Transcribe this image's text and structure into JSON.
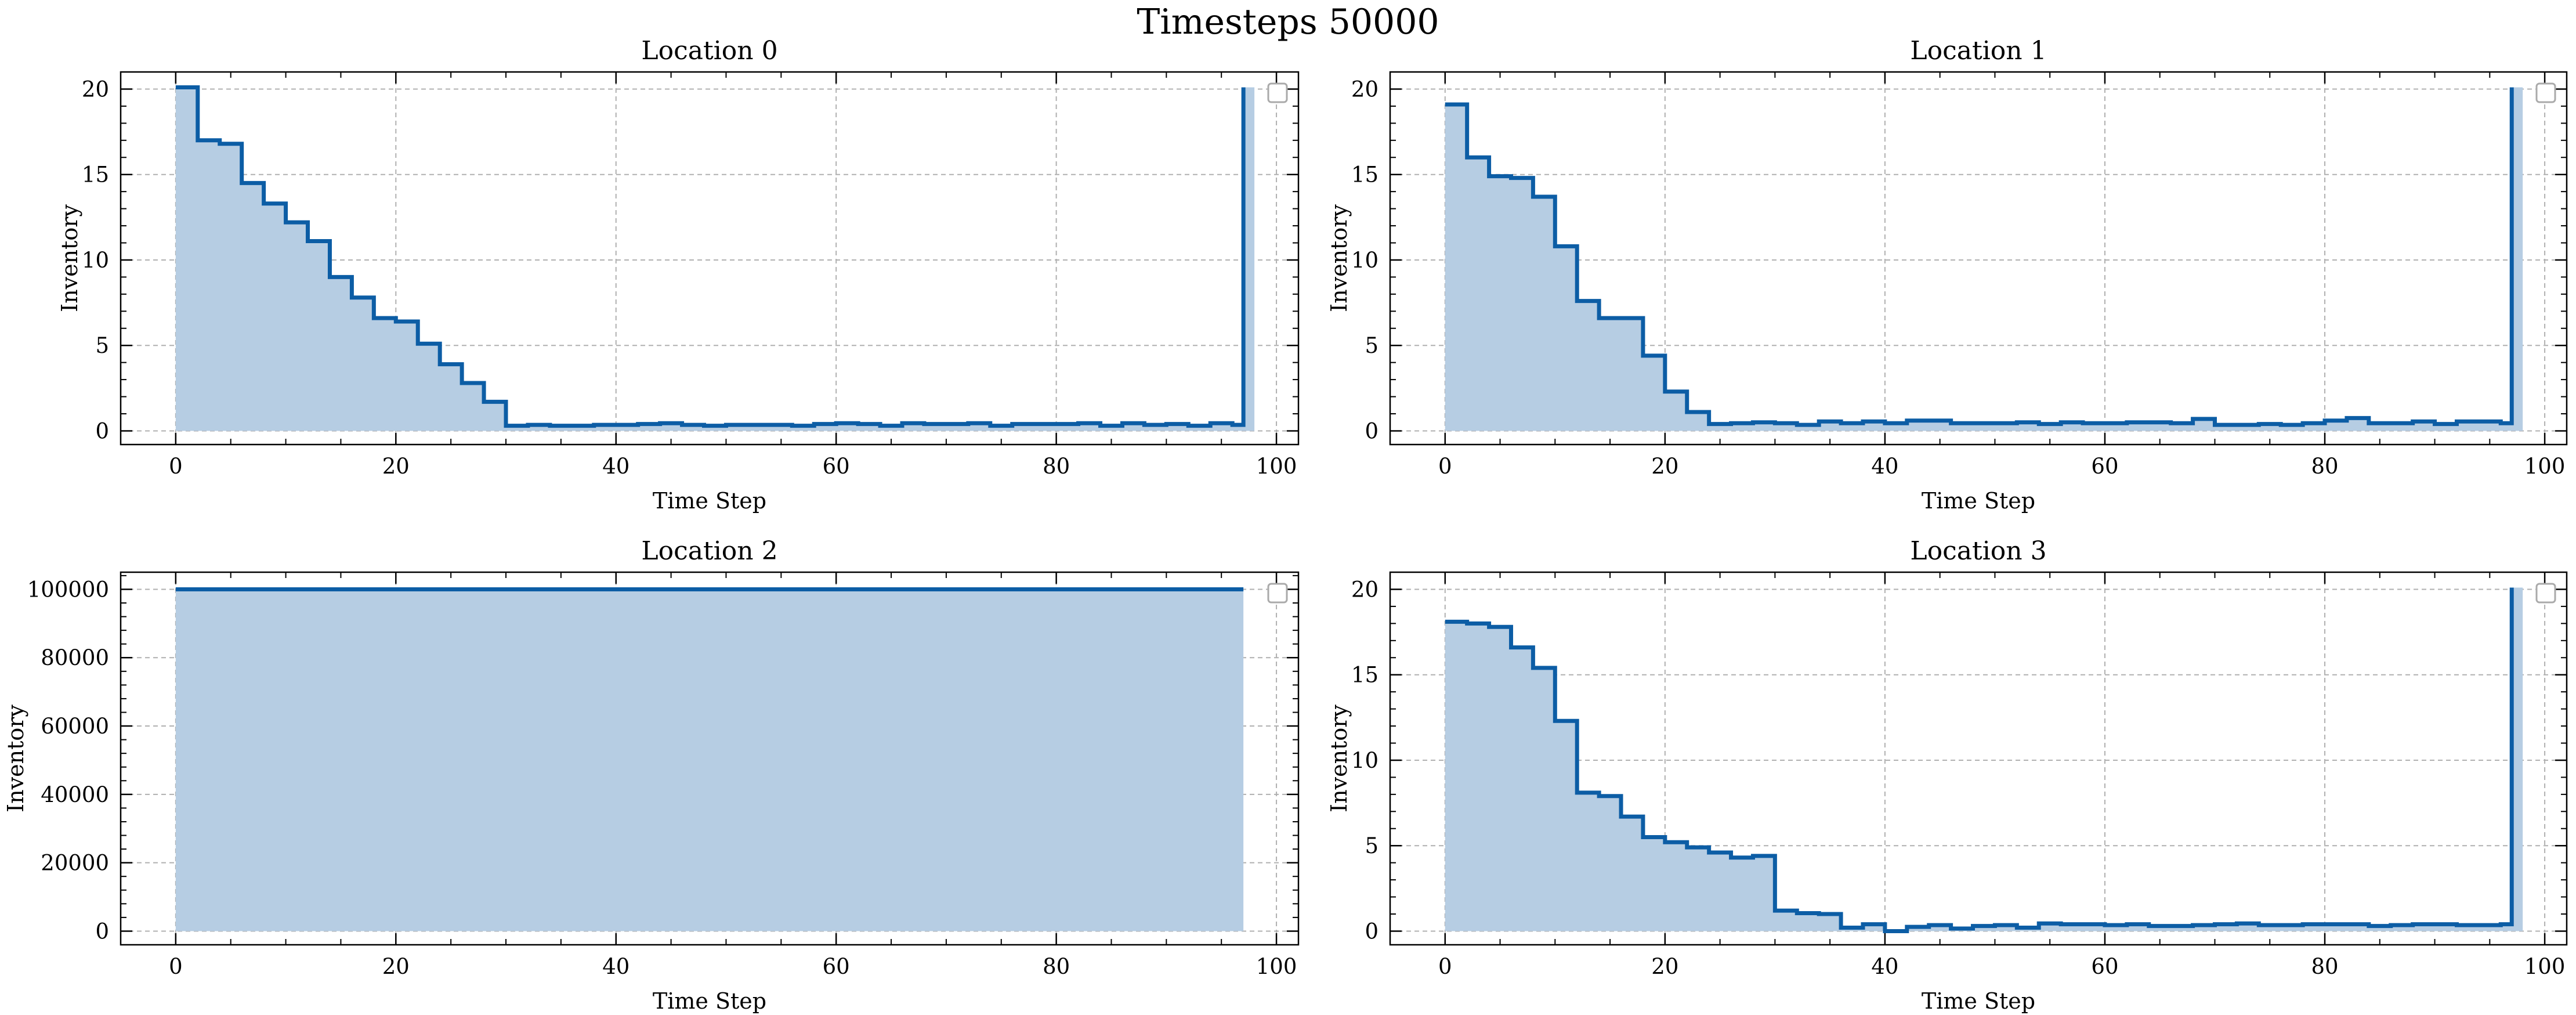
{
  "figure": {
    "title": "Timesteps 50000",
    "colors": {
      "line": "#0c5da5",
      "fill": "#b6cde3",
      "grid": "#b0b0b0",
      "axis": "#000000"
    }
  },
  "chart_data": [
    {
      "type": "line",
      "drawstyle": "steps-post",
      "fill": true,
      "title": "Location 0",
      "xlabel": "Time Step",
      "ylabel": "Inventory",
      "xlim": [
        -5,
        102
      ],
      "ylim": [
        -0.8,
        21
      ],
      "xticks": [
        0,
        20,
        40,
        60,
        80,
        100
      ],
      "yticks": [
        0,
        5,
        10,
        15,
        20
      ],
      "grid": true,
      "legend": "top-right (empty)",
      "x": [
        0,
        2,
        4,
        6,
        8,
        10,
        12,
        14,
        16,
        18,
        20,
        22,
        24,
        26,
        28,
        30,
        32,
        34,
        36,
        38,
        40,
        42,
        44,
        46,
        48,
        50,
        52,
        54,
        56,
        58,
        60,
        62,
        64,
        66,
        68,
        70,
        72,
        74,
        76,
        78,
        80,
        82,
        84,
        86,
        88,
        90,
        92,
        94,
        96,
        97
      ],
      "values": [
        20.1,
        17.0,
        16.8,
        14.5,
        13.3,
        12.2,
        11.1,
        9.0,
        7.8,
        6.6,
        6.4,
        5.1,
        3.9,
        2.8,
        1.7,
        0.3,
        0.35,
        0.3,
        0.3,
        0.35,
        0.35,
        0.4,
        0.45,
        0.35,
        0.3,
        0.35,
        0.35,
        0.35,
        0.3,
        0.4,
        0.45,
        0.4,
        0.3,
        0.45,
        0.4,
        0.4,
        0.45,
        0.3,
        0.4,
        0.4,
        0.4,
        0.45,
        0.3,
        0.45,
        0.35,
        0.4,
        0.3,
        0.45,
        0.35,
        20.1
      ]
    },
    {
      "type": "line",
      "drawstyle": "steps-post",
      "fill": true,
      "title": "Location 1",
      "xlabel": "Time Step",
      "ylabel": "Inventory",
      "xlim": [
        -5,
        102
      ],
      "ylim": [
        -0.8,
        21
      ],
      "xticks": [
        0,
        20,
        40,
        60,
        80,
        100
      ],
      "yticks": [
        0,
        5,
        10,
        15,
        20
      ],
      "grid": true,
      "legend": "top-right (empty)",
      "x": [
        0,
        2,
        4,
        6,
        8,
        10,
        12,
        14,
        16,
        18,
        20,
        22,
        24,
        26,
        28,
        30,
        32,
        34,
        36,
        38,
        40,
        42,
        44,
        46,
        48,
        50,
        52,
        54,
        56,
        58,
        60,
        62,
        64,
        66,
        68,
        70,
        72,
        74,
        76,
        78,
        80,
        82,
        84,
        86,
        88,
        90,
        92,
        94,
        96,
        97
      ],
      "values": [
        19.1,
        16.0,
        14.9,
        14.8,
        13.7,
        10.8,
        7.6,
        6.6,
        6.6,
        4.4,
        2.3,
        1.1,
        0.4,
        0.45,
        0.5,
        0.45,
        0.35,
        0.55,
        0.45,
        0.55,
        0.45,
        0.6,
        0.6,
        0.45,
        0.45,
        0.45,
        0.5,
        0.4,
        0.5,
        0.45,
        0.45,
        0.5,
        0.5,
        0.45,
        0.7,
        0.35,
        0.35,
        0.4,
        0.35,
        0.45,
        0.6,
        0.75,
        0.45,
        0.45,
        0.55,
        0.4,
        0.55,
        0.55,
        0.45,
        20.1
      ]
    },
    {
      "type": "line",
      "drawstyle": "steps-post",
      "fill": true,
      "title": "Location 2",
      "xlabel": "Time Step",
      "ylabel": "Inventory",
      "xlim": [
        -5,
        102
      ],
      "ylim": [
        -4000,
        105000
      ],
      "xticks": [
        0,
        20,
        40,
        60,
        80,
        100
      ],
      "yticks": [
        0,
        20000,
        40000,
        60000,
        80000,
        100000
      ],
      "grid": true,
      "legend": "top-right (empty)",
      "x": [
        0,
        97
      ],
      "values": [
        100000,
        100000
      ]
    },
    {
      "type": "line",
      "drawstyle": "steps-post",
      "fill": true,
      "title": "Location 3",
      "xlabel": "Time Step",
      "ylabel": "Inventory",
      "xlim": [
        -5,
        102
      ],
      "ylim": [
        -0.8,
        21
      ],
      "xticks": [
        0,
        20,
        40,
        60,
        80,
        100
      ],
      "yticks": [
        0,
        5,
        10,
        15,
        20
      ],
      "grid": true,
      "legend": "top-right (empty)",
      "x": [
        0,
        2,
        4,
        6,
        8,
        10,
        12,
        14,
        16,
        18,
        20,
        22,
        24,
        26,
        28,
        30,
        32,
        34,
        36,
        38,
        40,
        42,
        44,
        46,
        48,
        50,
        52,
        54,
        56,
        58,
        60,
        62,
        64,
        66,
        68,
        70,
        72,
        74,
        76,
        78,
        80,
        82,
        84,
        86,
        88,
        90,
        92,
        94,
        96,
        97
      ],
      "values": [
        18.1,
        18.0,
        17.8,
        16.6,
        15.4,
        12.3,
        8.1,
        7.9,
        6.7,
        5.5,
        5.2,
        4.9,
        4.6,
        4.3,
        4.4,
        1.2,
        1.05,
        1.0,
        0.2,
        0.4,
        0.0,
        0.25,
        0.35,
        0.15,
        0.3,
        0.35,
        0.2,
        0.45,
        0.4,
        0.4,
        0.35,
        0.4,
        0.3,
        0.3,
        0.35,
        0.4,
        0.45,
        0.35,
        0.35,
        0.4,
        0.4,
        0.4,
        0.3,
        0.35,
        0.4,
        0.4,
        0.35,
        0.35,
        0.4,
        20.1
      ]
    }
  ]
}
